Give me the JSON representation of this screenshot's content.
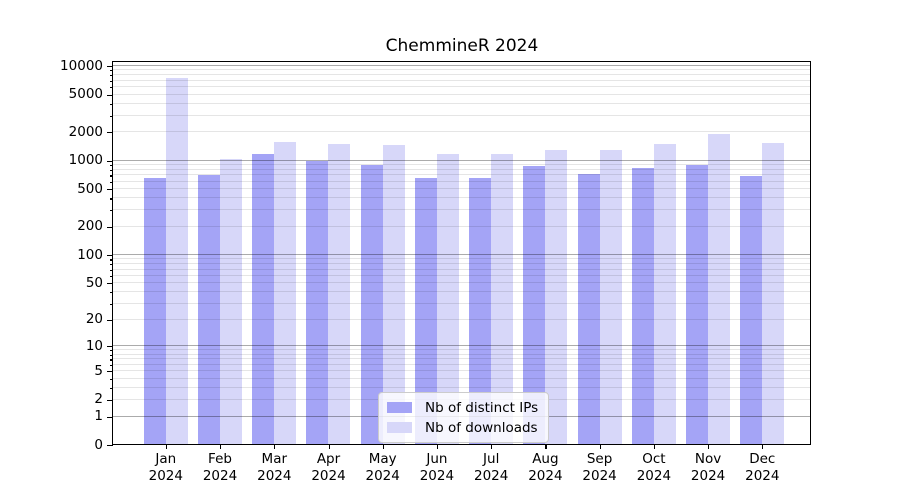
{
  "title": "ChemmineR 2024",
  "legend": {
    "items": [
      {
        "label": "Nb of distinct IPs",
        "color": "#a4a4f6"
      },
      {
        "label": "Nb of downloads",
        "color": "#d7d7f9"
      }
    ]
  },
  "chart_data": {
    "type": "bar",
    "title": "ChemmineR 2024",
    "xlabel": "",
    "ylabel": "",
    "scale": "log10(value+1)",
    "ylim": [
      0,
      11000
    ],
    "grid": "both",
    "legend_position": "inside-bottom-center",
    "yticks": [
      0,
      1,
      2,
      5,
      10,
      20,
      50,
      100,
      200,
      500,
      1000,
      2000,
      5000,
      10000
    ],
    "categories": [
      "Jan 2024",
      "Feb 2024",
      "Mar 2024",
      "Apr 2024",
      "May 2024",
      "Jun 2024",
      "Jul 2024",
      "Aug 2024",
      "Sep 2024",
      "Oct 2024",
      "Nov 2024",
      "Dec 2024"
    ],
    "series": [
      {
        "name": "Nb of distinct IPs",
        "color": "#a4a4f6",
        "values": [
          665,
          700,
          1170,
          1000,
          910,
          660,
          660,
          880,
          725,
          840,
          895,
          685
        ]
      },
      {
        "name": "Nb of downloads",
        "color": "#d7d7f9",
        "values": [
          7550,
          1035,
          1560,
          1500,
          1455,
          1190,
          1170,
          1290,
          1310,
          1490,
          1900,
          1550
        ]
      }
    ]
  }
}
